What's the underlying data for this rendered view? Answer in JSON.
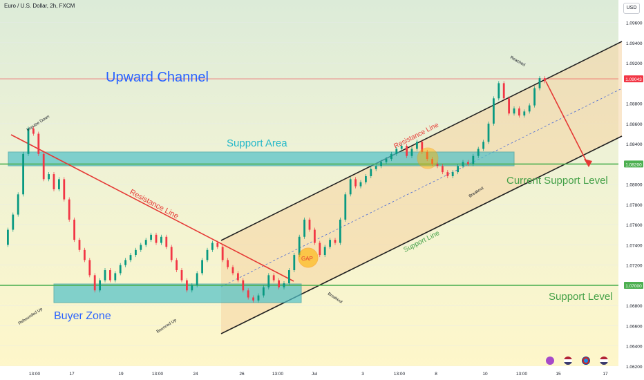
{
  "header": {
    "symbol": "Euro / U.S. Dollar, 2h, FXCM",
    "currency_button": "USD"
  },
  "chart_data": {
    "type": "line",
    "ylim": [
      1.062,
      1.097
    ],
    "price_ticks": [
      "1.09600",
      "1.09400",
      "1.09200",
      "1.08800",
      "1.08600",
      "1.08400",
      "1.08000",
      "1.07800",
      "1.07600",
      "1.07400",
      "1.07200",
      "1.06800",
      "1.06600",
      "1.06400",
      "1.06200"
    ],
    "price_tick_values": [
      1.096,
      1.094,
      1.092,
      1.088,
      1.086,
      1.084,
      1.08,
      1.078,
      1.076,
      1.074,
      1.072,
      1.068,
      1.066,
      1.064,
      1.062
    ],
    "x_ticks": [
      "13:00",
      "17",
      "19",
      "13:00",
      "24",
      "26",
      "13:00",
      "Jul",
      "3",
      "13:00",
      "8",
      "10",
      "13:00",
      "15",
      "17"
    ],
    "highlight_prices": [
      {
        "value": 1.09043,
        "label": "1.09043",
        "color": "#f23645"
      },
      {
        "value": 1.082,
        "label": "1.08200",
        "color": "#4caf50"
      },
      {
        "value": 1.07,
        "label": "1.07000",
        "color": "#4caf50"
      }
    ],
    "candles_path": [
      [
        0,
        1.074
      ],
      [
        2,
        1.0755
      ],
      [
        4,
        1.077
      ],
      [
        6,
        1.079
      ],
      [
        8,
        1.083
      ],
      [
        10,
        1.0855
      ],
      [
        12,
        1.085
      ],
      [
        14,
        1.083
      ],
      [
        16,
        1.0805
      ],
      [
        18,
        1.081
      ],
      [
        20,
        1.0795
      ],
      [
        22,
        1.0805
      ],
      [
        24,
        1.0785
      ],
      [
        26,
        1.0765
      ],
      [
        28,
        1.0745
      ],
      [
        30,
        1.0735
      ],
      [
        32,
        1.0725
      ],
      [
        34,
        1.071
      ],
      [
        36,
        1.0695
      ],
      [
        38,
        1.0705
      ],
      [
        40,
        1.0715
      ],
      [
        42,
        1.0705
      ],
      [
        44,
        1.0712
      ],
      [
        46,
        1.072
      ],
      [
        48,
        1.0725
      ],
      [
        50,
        1.073
      ],
      [
        52,
        1.0735
      ],
      [
        54,
        1.074
      ],
      [
        56,
        1.0745
      ],
      [
        58,
        1.075
      ],
      [
        60,
        1.0742
      ],
      [
        62,
        1.0748
      ],
      [
        64,
        1.0738
      ],
      [
        66,
        1.0725
      ],
      [
        68,
        1.0715
      ],
      [
        70,
        1.0705
      ],
      [
        72,
        1.0695
      ],
      [
        74,
        1.07
      ],
      [
        76,
        1.0712
      ],
      [
        78,
        1.0725
      ],
      [
        80,
        1.0735
      ],
      [
        82,
        1.0742
      ],
      [
        84,
        1.0738
      ],
      [
        86,
        1.0725
      ],
      [
        88,
        1.0718
      ],
      [
        90,
        1.0712
      ],
      [
        92,
        1.0705
      ],
      [
        94,
        1.0695
      ],
      [
        96,
        1.0688
      ],
      [
        98,
        1.0685
      ],
      [
        100,
        1.069
      ],
      [
        102,
        1.0698
      ],
      [
        104,
        1.071
      ],
      [
        106,
        1.0705
      ],
      [
        108,
        1.0698
      ],
      [
        110,
        1.0702
      ],
      [
        112,
        1.0715
      ],
      [
        114,
        1.073
      ],
      [
        116,
        1.0748
      ],
      [
        118,
        1.0765
      ],
      [
        120,
        1.0755
      ],
      [
        122,
        1.0742
      ],
      [
        124,
        1.073
      ],
      [
        126,
        1.0738
      ],
      [
        128,
        1.0745
      ],
      [
        130,
        1.0742
      ],
      [
        132,
        1.0765
      ],
      [
        134,
        1.079
      ],
      [
        136,
        1.0805
      ],
      [
        138,
        1.0798
      ],
      [
        140,
        1.0802
      ],
      [
        142,
        1.0808
      ],
      [
        144,
        1.0815
      ],
      [
        146,
        1.0818
      ],
      [
        148,
        1.0822
      ],
      [
        150,
        1.0825
      ],
      [
        152,
        1.083
      ],
      [
        154,
        1.0835
      ],
      [
        156,
        1.0838
      ],
      [
        158,
        1.0828
      ],
      [
        160,
        1.0835
      ],
      [
        162,
        1.0842
      ],
      [
        164,
        1.0832
      ],
      [
        166,
        1.0825
      ],
      [
        168,
        1.082
      ],
      [
        170,
        1.0818
      ],
      [
        172,
        1.0812
      ],
      [
        174,
        1.0808
      ],
      [
        176,
        1.0812
      ],
      [
        178,
        1.0818
      ],
      [
        180,
        1.0822
      ],
      [
        182,
        1.082
      ],
      [
        184,
        1.0828
      ],
      [
        186,
        1.0835
      ],
      [
        188,
        1.0842
      ],
      [
        190,
        1.086
      ],
      [
        192,
        1.0885
      ],
      [
        194,
        1.09
      ],
      [
        196,
        1.0885
      ],
      [
        198,
        1.087
      ],
      [
        200,
        1.0875
      ],
      [
        202,
        1.0868
      ],
      [
        204,
        1.0872
      ],
      [
        206,
        1.0878
      ],
      [
        208,
        1.0895
      ],
      [
        210,
        1.0905
      ],
      [
        212,
        1.0902
      ]
    ],
    "annotations": {
      "upward_channel": "Upward Channel",
      "support_area": "Support Area",
      "resistance_line_left": "Resistance Line",
      "resistance_line_right": "Resistance Line",
      "buyer_zone": "Buyer Zone",
      "current_support_level": "Current Support Level",
      "support_level": "Support Level",
      "support_line": "Support Line",
      "gap": "GAP",
      "impulse_down": "Impulse Down",
      "rebounded_up": "Rebounded Up",
      "bounced_up": "Bounced Up",
      "breakout_left": "Breakout",
      "breakout_right": "Breakout",
      "reached": "Reached"
    }
  }
}
